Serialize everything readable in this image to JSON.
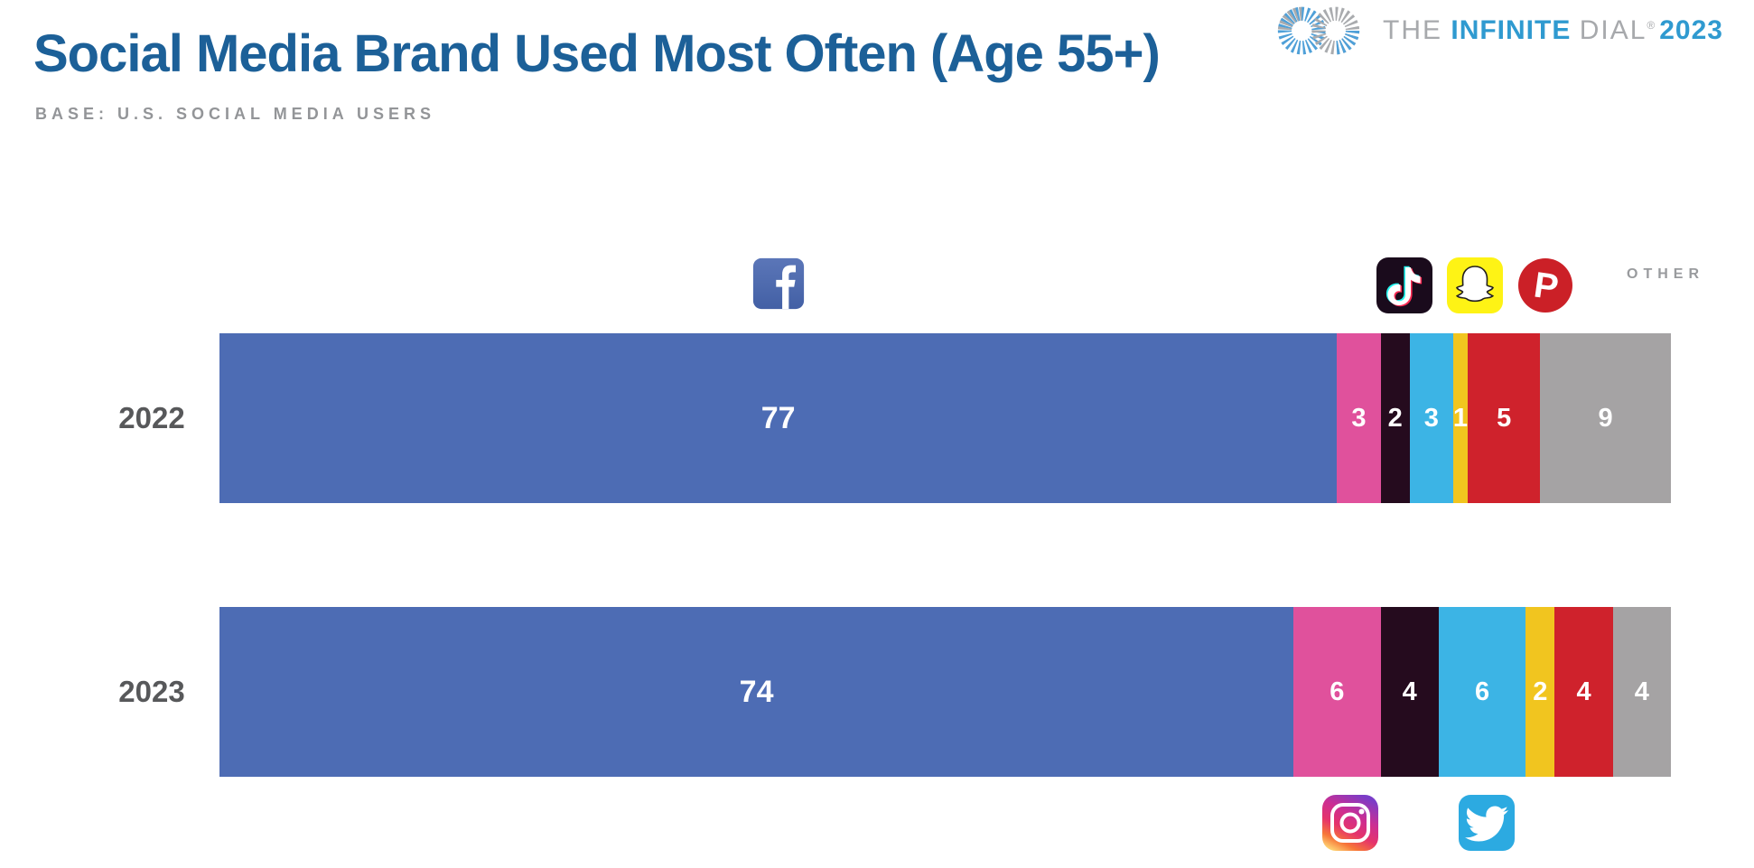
{
  "header": {
    "title": "Social Media Brand Used Most Often (Age 55+)",
    "base_note": "BASE: U.S. SOCIAL MEDIA USERS",
    "brand": {
      "word1": "THE",
      "word2": "INFINITE",
      "word3": "DIAL",
      "reg": "®",
      "year": "2023"
    }
  },
  "annotations": {
    "other_label": "OTHER"
  },
  "icons": {
    "top_row": [
      "facebook-icon",
      "tiktok-icon",
      "snapchat-icon",
      "pinterest-icon"
    ],
    "bottom_row": [
      "instagram-icon",
      "twitter-icon"
    ]
  },
  "colors": {
    "title_blue": "#1c6098",
    "brand_blue": "#2f9ad0",
    "muted_gray": "#a7a9ac",
    "label_gray": "#57585a"
  },
  "chart_data": {
    "type": "bar",
    "stacked": true,
    "orientation": "horizontal",
    "title": "Social Media Brand Used Most Often (Age 55+)",
    "subtitle": "BASE: U.S. SOCIAL MEDIA USERS",
    "value_unit": "percent",
    "xlim": [
      0,
      100
    ],
    "categories": [
      "2022",
      "2023"
    ],
    "series": [
      {
        "name": "Facebook",
        "color": "#4d6cb4",
        "values": [
          77,
          74
        ]
      },
      {
        "name": "Instagram",
        "color": "#e0519c",
        "values": [
          3,
          6
        ]
      },
      {
        "name": "TikTok",
        "color": "#250b1e",
        "values": [
          2,
          4
        ]
      },
      {
        "name": "Twitter",
        "color": "#3cb4e5",
        "values": [
          3,
          6
        ]
      },
      {
        "name": "Snapchat",
        "color": "#f1c51f",
        "values": [
          1,
          2
        ]
      },
      {
        "name": "Pinterest",
        "color": "#cf222c",
        "values": [
          5,
          4
        ]
      },
      {
        "name": "Other",
        "color": "#a5a3a4",
        "values": [
          9,
          4
        ]
      }
    ]
  }
}
